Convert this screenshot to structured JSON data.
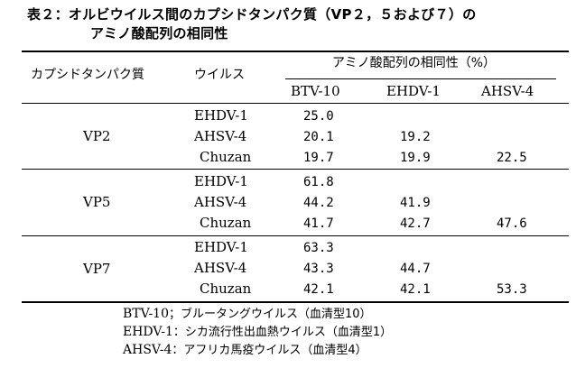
{
  "caption": {
    "line1": "表２：オルビウイルス間のカプシドタンパク質（VP２，５および７）の",
    "line2": "アミノ酸配列の相同性"
  },
  "headers": {
    "protein": "カプシドタンパク質",
    "virus": "ウイルス",
    "homology": "アミノ酸配列の相同性（%）",
    "btv": "BTV-10",
    "ehdv": "EHDV-1",
    "ahsv": "AHSV-4"
  },
  "groups": [
    {
      "protein": "VP2",
      "rows": [
        {
          "virus": "EHDV-1",
          "btv": "25.0",
          "ehdv": "",
          "ahsv": ""
        },
        {
          "virus": "AHSV-4",
          "btv": "20.1",
          "ehdv": "19.2",
          "ahsv": ""
        },
        {
          "virus": "Chuzan",
          "btv": "19.7",
          "ehdv": "19.9",
          "ahsv": "22.5"
        }
      ]
    },
    {
      "protein": "VP5",
      "rows": [
        {
          "virus": "EHDV-1",
          "btv": "61.8",
          "ehdv": "",
          "ahsv": ""
        },
        {
          "virus": "AHSV-4",
          "btv": "44.2",
          "ehdv": "41.9",
          "ahsv": ""
        },
        {
          "virus": "Chuzan",
          "btv": "41.7",
          "ehdv": "42.7",
          "ahsv": "47.6"
        }
      ]
    },
    {
      "protein": "VP7",
      "rows": [
        {
          "virus": "EHDV-1",
          "btv": "63.3",
          "ehdv": "",
          "ahsv": ""
        },
        {
          "virus": "AHSV-4",
          "btv": "43.3",
          "ehdv": "44.7",
          "ahsv": ""
        },
        {
          "virus": "Chuzan",
          "btv": "42.1",
          "ehdv": "42.1",
          "ahsv": "53.3"
        }
      ]
    }
  ],
  "footnotes": [
    {
      "code": "BTV-10",
      "desc": "；ブルータングウイルス（血清型10）"
    },
    {
      "code": "EHDV-1",
      "desc": "：シカ流行性出血熱ウイルス（血清型1）"
    },
    {
      "code": "AHSV-4",
      "desc": "：アフリカ馬疫ウイルス（血清型4）"
    }
  ]
}
